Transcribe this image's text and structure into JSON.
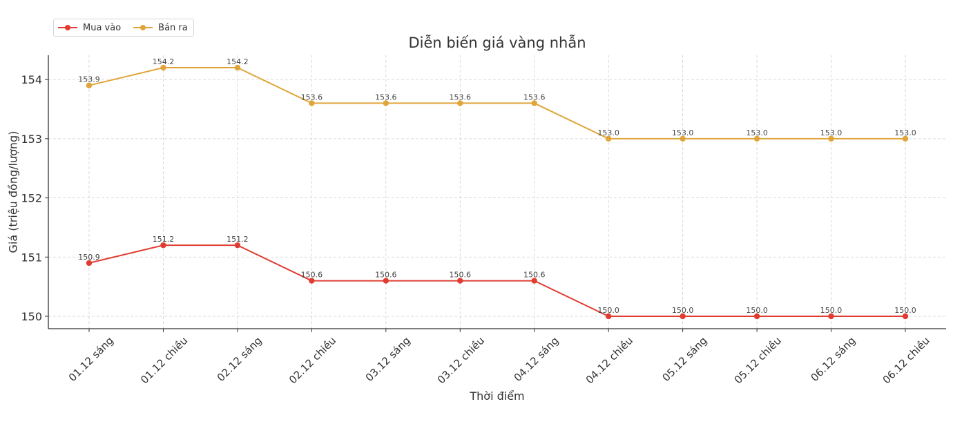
{
  "chart_data": {
    "type": "line",
    "title": "Diễn biến giá vàng nhẫn",
    "xlabel": "Thời điểm",
    "ylabel": "Giá (triệu đồng/lượng)",
    "categories": [
      "01.12 sáng",
      "01.12 chiều",
      "02.12 sáng",
      "02.12 chiều",
      "03.12 sáng",
      "03.12 chiều",
      "04.12 sáng",
      "04.12 chiều",
      "05.12 sáng",
      "05.12 chiều",
      "06.12 sáng",
      "06.12 chiều"
    ],
    "series": [
      {
        "name": "Mua vào",
        "color": "#e03c31",
        "values": [
          150.9,
          151.2,
          151.2,
          150.6,
          150.6,
          150.6,
          150.6,
          150.0,
          150.0,
          150.0,
          150.0,
          150.0
        ]
      },
      {
        "name": "Bán ra",
        "color": "#e0a53a",
        "values": [
          153.9,
          154.2,
          154.2,
          153.6,
          153.6,
          153.6,
          153.6,
          153.0,
          153.0,
          153.0,
          153.0,
          153.0
        ]
      }
    ],
    "yticks": [
      150,
      151,
      152,
      153,
      154
    ],
    "ylim": [
      149.79,
      154.41
    ],
    "grid": true,
    "legend_position": "upper left",
    "data_labels": true
  },
  "legend": {
    "items": [
      {
        "label": "Mua vào",
        "color": "#e03c31"
      },
      {
        "label": "Bán ra",
        "color": "#e0a53a"
      }
    ]
  }
}
